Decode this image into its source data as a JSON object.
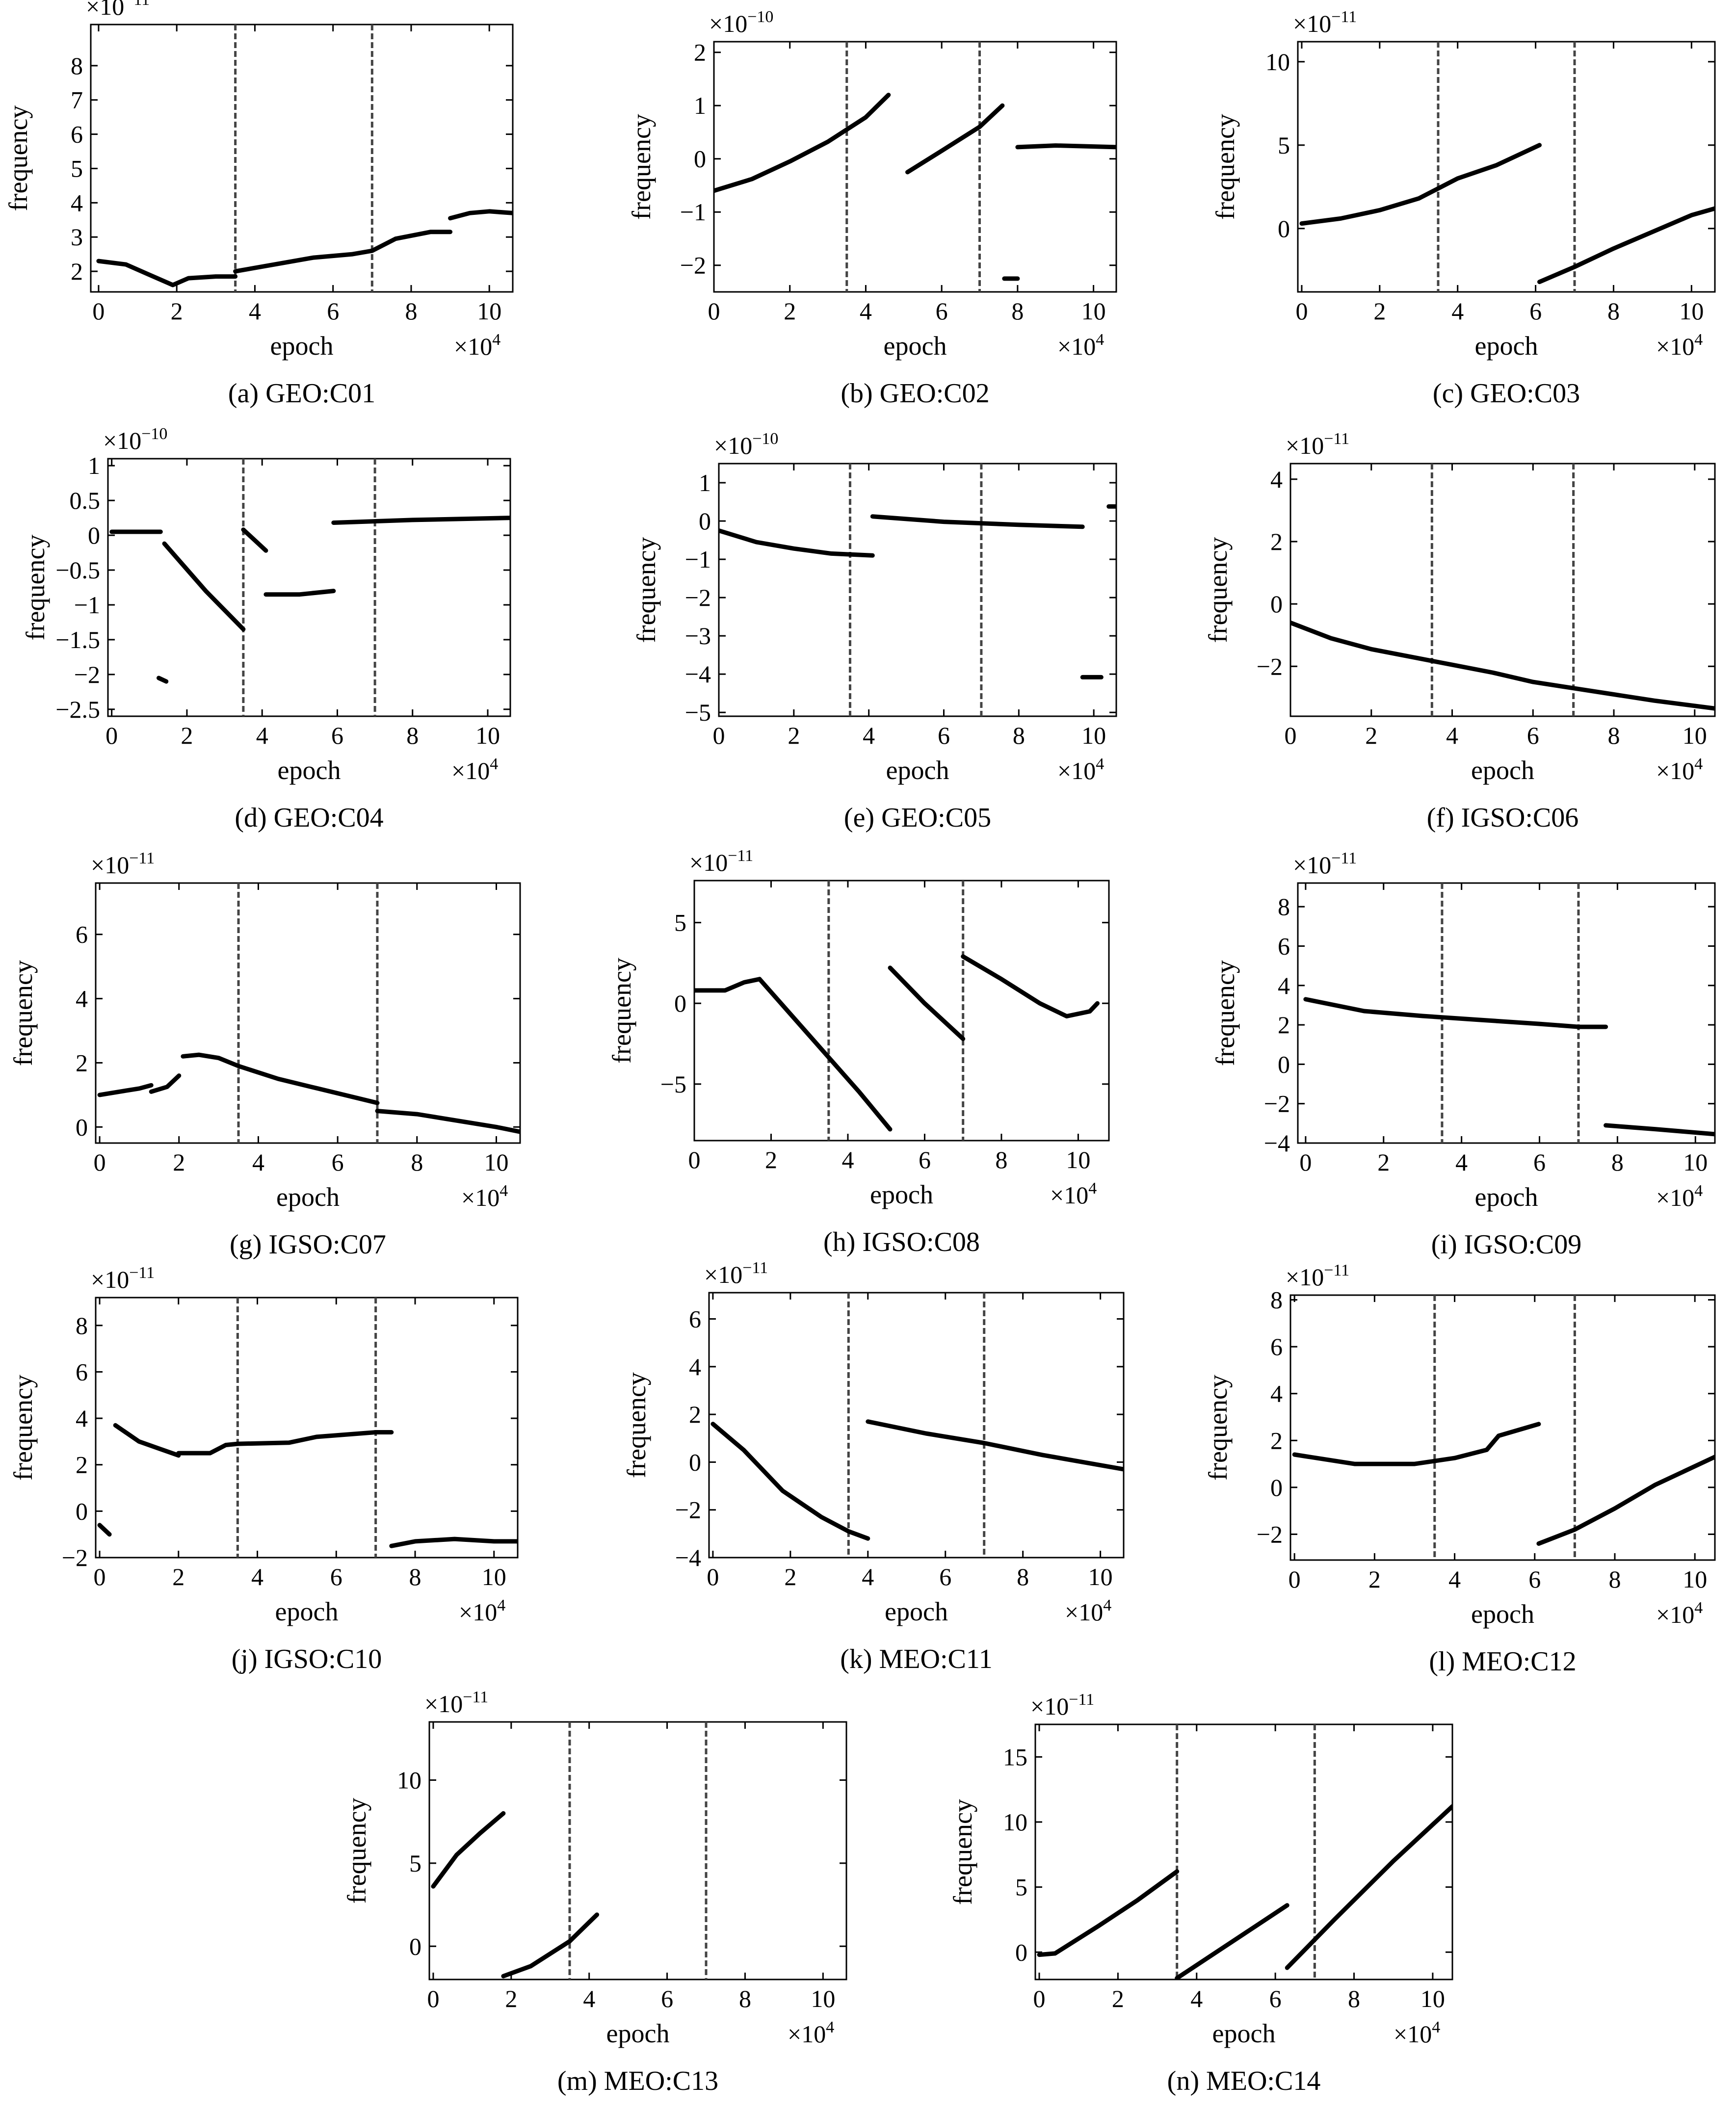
{
  "chart_data": [
    {
      "type": "line",
      "panel": "a",
      "caption": "(a) GEO:C01",
      "xlabel": "epoch",
      "ylabel": "frequency",
      "x_multiplier": "×10",
      "x_multiplier_exp": "4",
      "y_multiplier": "×10",
      "y_multiplier_exp": "−11",
      "xlim": [
        -0.2,
        10.6
      ],
      "ylim": [
        1.4,
        9.2
      ],
      "xticks": [
        0,
        2,
        4,
        6,
        8,
        10
      ],
      "yticks": [
        2,
        3,
        4,
        5,
        6,
        7,
        8
      ],
      "vlines": [
        3.5,
        7.0
      ],
      "series": [
        {
          "x": [
            0,
            0.7,
            1.3,
            1.9,
            2.3,
            3.0,
            3.5
          ],
          "y": [
            2.3,
            2.2,
            1.9,
            1.6,
            1.8,
            1.85,
            1.85
          ]
        },
        {
          "x": [
            3.5,
            4.5,
            5.5,
            6.5,
            7.0,
            7.6,
            8.5,
            9.0
          ],
          "y": [
            2.0,
            2.2,
            2.4,
            2.5,
            2.6,
            2.95,
            3.15,
            3.15
          ]
        },
        {
          "x": [
            9.0,
            9.5,
            10.0,
            10.6
          ],
          "y": [
            3.55,
            3.7,
            3.75,
            3.7
          ]
        }
      ]
    },
    {
      "type": "line",
      "panel": "b",
      "caption": "(b) GEO:C02",
      "xlabel": "epoch",
      "ylabel": "frequency",
      "x_multiplier": "×10",
      "x_multiplier_exp": "4",
      "y_multiplier": "×10",
      "y_multiplier_exp": "−10",
      "xlim": [
        0,
        10.6
      ],
      "ylim": [
        -2.5,
        2.2
      ],
      "xticks": [
        0,
        2,
        4,
        6,
        8,
        10
      ],
      "yticks": [
        -2,
        -1,
        0,
        1,
        2
      ],
      "vlines": [
        3.5,
        7.0
      ],
      "series": [
        {
          "x": [
            0,
            1,
            2,
            3,
            4,
            4.6
          ],
          "y": [
            -0.6,
            -0.38,
            -0.05,
            0.32,
            0.78,
            1.2
          ]
        },
        {
          "x": [
            5.1,
            6,
            7,
            7.6
          ],
          "y": [
            -0.25,
            0.15,
            0.6,
            1.0
          ]
        },
        {
          "x": [
            7.65,
            8.0
          ],
          "y": [
            -2.25,
            -2.25
          ]
        },
        {
          "x": [
            8.0,
            9.0,
            10.6
          ],
          "y": [
            0.22,
            0.25,
            0.22
          ]
        }
      ]
    },
    {
      "type": "line",
      "panel": "c",
      "caption": "(c) GEO:C03",
      "xlabel": "epoch",
      "ylabel": "frequency",
      "x_multiplier": "×10",
      "x_multiplier_exp": "4",
      "y_multiplier": "×10",
      "y_multiplier_exp": "−11",
      "xlim": [
        -0.1,
        10.6
      ],
      "ylim": [
        -3.8,
        11.2
      ],
      "xticks": [
        0,
        2,
        4,
        6,
        8,
        10
      ],
      "yticks": [
        0,
        5,
        10
      ],
      "vlines": [
        3.5,
        7.0
      ],
      "series": [
        {
          "x": [
            0,
            1,
            2,
            3,
            4,
            5,
            6.1
          ],
          "y": [
            0.3,
            0.6,
            1.1,
            1.8,
            3.0,
            3.8,
            5.0
          ]
        },
        {
          "x": [
            6.1,
            7,
            8,
            9,
            10,
            10.6
          ],
          "y": [
            -3.2,
            -2.3,
            -1.2,
            -0.2,
            0.8,
            1.2
          ]
        }
      ]
    },
    {
      "type": "line",
      "panel": "d",
      "caption": "(d) GEO:C04",
      "xlabel": "epoch",
      "ylabel": "frequency",
      "x_multiplier": "×10",
      "x_multiplier_exp": "4",
      "y_multiplier": "×10",
      "y_multiplier_exp": "−10",
      "xlim": [
        -0.1,
        10.6
      ],
      "ylim": [
        -2.6,
        1.1
      ],
      "xticks": [
        0,
        2,
        4,
        6,
        8,
        10
      ],
      "yticks": [
        -2.5,
        -2,
        -1.5,
        -1,
        -0.5,
        0,
        0.5,
        1
      ],
      "vlines": [
        3.5,
        7.0
      ],
      "series": [
        {
          "x": [
            0,
            1.3
          ],
          "y": [
            0.05,
            0.05
          ]
        },
        {
          "x": [
            1.25,
            1.45
          ],
          "y": [
            -2.05,
            -2.1
          ]
        },
        {
          "x": [
            1.4,
            2.5,
            3.5
          ],
          "y": [
            -0.12,
            -0.8,
            -1.35
          ]
        },
        {
          "x": [
            3.5,
            4.1
          ],
          "y": [
            0.08,
            -0.22
          ]
        },
        {
          "x": [
            4.1,
            5.0,
            5.9
          ],
          "y": [
            -0.85,
            -0.85,
            -0.8
          ]
        },
        {
          "x": [
            5.9,
            8.0,
            10.6
          ],
          "y": [
            0.18,
            0.22,
            0.25
          ]
        }
      ]
    },
    {
      "type": "line",
      "panel": "e",
      "caption": "(e) GEO:C05",
      "xlabel": "epoch",
      "ylabel": "frequency",
      "x_multiplier": "×10",
      "x_multiplier_exp": "4",
      "y_multiplier": "×10",
      "y_multiplier_exp": "−10",
      "xlim": [
        0,
        10.6
      ],
      "ylim": [
        -5.1,
        1.5
      ],
      "xticks": [
        0,
        2,
        4,
        6,
        8,
        10
      ],
      "yticks": [
        -5,
        -4,
        -3,
        -2,
        -1,
        0,
        1
      ],
      "vlines": [
        3.5,
        7.0
      ],
      "series": [
        {
          "x": [
            0,
            1,
            2,
            3,
            4.1
          ],
          "y": [
            -0.25,
            -0.55,
            -0.72,
            -0.85,
            -0.9
          ]
        },
        {
          "x": [
            4.1,
            6,
            8,
            9.7
          ],
          "y": [
            0.12,
            -0.02,
            -0.1,
            -0.15
          ]
        },
        {
          "x": [
            9.7,
            10.2
          ],
          "y": [
            -4.08,
            -4.08
          ]
        },
        {
          "x": [
            10.4,
            10.6
          ],
          "y": [
            0.38,
            0.38
          ]
        }
      ]
    },
    {
      "type": "line",
      "panel": "f",
      "caption": "(f) IGSO:C06",
      "xlabel": "epoch",
      "ylabel": "frequency",
      "x_multiplier": "×10",
      "x_multiplier_exp": "4",
      "y_multiplier": "×10",
      "y_multiplier_exp": "−11",
      "xlim": [
        0,
        10.5
      ],
      "ylim": [
        -3.6,
        4.5
      ],
      "xticks": [
        0,
        2,
        4,
        6,
        8,
        10
      ],
      "yticks": [
        -2,
        0,
        2,
        4
      ],
      "vlines": [
        3.5,
        7.0
      ],
      "series": [
        {
          "x": [
            0,
            1,
            2,
            3,
            4,
            5,
            6,
            7,
            8,
            9,
            10.5
          ],
          "y": [
            -0.6,
            -1.1,
            -1.45,
            -1.7,
            -1.95,
            -2.2,
            -2.5,
            -2.7,
            -2.9,
            -3.1,
            -3.35
          ]
        }
      ]
    },
    {
      "type": "line",
      "panel": "g",
      "caption": "(g) IGSO:C07",
      "xlabel": "epoch",
      "ylabel": "frequency",
      "x_multiplier": "×10",
      "x_multiplier_exp": "4",
      "y_multiplier": "×10",
      "y_multiplier_exp": "−11",
      "xlim": [
        -0.1,
        10.6
      ],
      "ylim": [
        -0.5,
        7.6
      ],
      "xticks": [
        0,
        2,
        4,
        6,
        8,
        10
      ],
      "yticks": [
        0,
        2,
        4,
        6
      ],
      "vlines": [
        3.5,
        7.0
      ],
      "series": [
        {
          "x": [
            0,
            0.5,
            1.0,
            1.3
          ],
          "y": [
            1.0,
            1.1,
            1.2,
            1.3
          ]
        },
        {
          "x": [
            1.3,
            1.7,
            2.0
          ],
          "y": [
            1.1,
            1.25,
            1.6
          ]
        },
        {
          "x": [
            2.1,
            2.5,
            3.0,
            3.5
          ],
          "y": [
            2.2,
            2.25,
            2.15,
            1.9
          ]
        },
        {
          "x": [
            3.5,
            4.5,
            5.5,
            6.5,
            7.0
          ],
          "y": [
            1.9,
            1.5,
            1.2,
            0.9,
            0.75
          ]
        },
        {
          "x": [
            7.0,
            8.0,
            9.0,
            10.0,
            10.6
          ],
          "y": [
            0.5,
            0.4,
            0.2,
            0.0,
            -0.15
          ]
        }
      ]
    },
    {
      "type": "line",
      "panel": "h",
      "caption": "(h) IGSO:C08",
      "xlabel": "epoch",
      "ylabel": "frequency",
      "x_multiplier": "×10",
      "x_multiplier_exp": "4",
      "y_multiplier": "×10",
      "y_multiplier_exp": "−11",
      "xlim": [
        0,
        10.8
      ],
      "ylim": [
        -8.5,
        7.6
      ],
      "xticks": [
        0,
        2,
        4,
        6,
        8,
        10
      ],
      "yticks": [
        -5,
        0,
        5
      ],
      "vlines": [
        3.5,
        7.0
      ],
      "series": [
        {
          "x": [
            0,
            0.8,
            1.3,
            1.7
          ],
          "y": [
            0.8,
            0.8,
            1.3,
            1.5
          ]
        },
        {
          "x": [
            1.7,
            3.0,
            4.3,
            5.1
          ],
          "y": [
            1.5,
            -2.0,
            -5.5,
            -7.8
          ]
        },
        {
          "x": [
            5.1,
            6.0,
            7.0
          ],
          "y": [
            2.2,
            0.0,
            -2.2
          ]
        },
        {
          "x": [
            7.0,
            8.0,
            9.0,
            9.7,
            10.3,
            10.5
          ],
          "y": [
            2.9,
            1.5,
            0.0,
            -0.8,
            -0.5,
            0.0
          ]
        }
      ]
    },
    {
      "type": "line",
      "panel": "i",
      "caption": "(i) IGSO:C09",
      "xlabel": "epoch",
      "ylabel": "frequency",
      "x_multiplier": "×10",
      "x_multiplier_exp": "4",
      "y_multiplier": "×10",
      "y_multiplier_exp": "−11",
      "xlim": [
        -0.2,
        10.5
      ],
      "ylim": [
        -4,
        9.2
      ],
      "xticks": [
        0,
        2,
        4,
        6,
        8,
        10
      ],
      "yticks": [
        -4,
        -2,
        0,
        2,
        4,
        6,
        8
      ],
      "vlines": [
        3.5,
        7.0
      ],
      "series": [
        {
          "x": [
            0,
            1.5,
            3.0,
            4.5,
            6.0,
            7.0,
            7.7
          ],
          "y": [
            3.3,
            2.7,
            2.45,
            2.25,
            2.05,
            1.9,
            1.9
          ]
        },
        {
          "x": [
            7.7,
            9.0,
            10.5
          ],
          "y": [
            -3.1,
            -3.3,
            -3.55
          ]
        }
      ]
    },
    {
      "type": "line",
      "panel": "j",
      "caption": "(j) IGSO:C10",
      "xlabel": "epoch",
      "ylabel": "frequency",
      "x_multiplier": "×10",
      "x_multiplier_exp": "4",
      "y_multiplier": "×10",
      "y_multiplier_exp": "−11",
      "xlim": [
        -0.1,
        10.6
      ],
      "ylim": [
        -2,
        9.2
      ],
      "xticks": [
        0,
        2,
        4,
        6,
        8,
        10
      ],
      "yticks": [
        -2,
        0,
        2,
        4,
        6,
        8
      ],
      "vlines": [
        3.5,
        7.0
      ],
      "series": [
        {
          "x": [
            0,
            0.25
          ],
          "y": [
            -0.6,
            -1.0
          ]
        },
        {
          "x": [
            0.4,
            1.0,
            1.5,
            2.0
          ],
          "y": [
            3.7,
            3.0,
            2.7,
            2.4
          ]
        },
        {
          "x": [
            2.0,
            2.8,
            3.2,
            3.5
          ],
          "y": [
            2.5,
            2.5,
            2.85,
            2.9
          ]
        },
        {
          "x": [
            3.5,
            4.8,
            5.5,
            7.0,
            7.4
          ],
          "y": [
            2.9,
            2.95,
            3.2,
            3.4,
            3.4
          ]
        },
        {
          "x": [
            7.4,
            8.0,
            9.0,
            10.0,
            10.6
          ],
          "y": [
            -1.5,
            -1.3,
            -1.2,
            -1.3,
            -1.3
          ]
        }
      ]
    },
    {
      "type": "line",
      "panel": "k",
      "caption": "(k) MEO:C11",
      "xlabel": "epoch",
      "ylabel": "frequency",
      "x_multiplier": "×10",
      "x_multiplier_exp": "4",
      "y_multiplier": "×10",
      "y_multiplier_exp": "−11",
      "xlim": [
        -0.1,
        10.6
      ],
      "ylim": [
        -4,
        7.1
      ],
      "xticks": [
        0,
        2,
        4,
        6,
        8,
        10
      ],
      "yticks": [
        -4,
        -2,
        0,
        2,
        4,
        6
      ],
      "vlines": [
        3.5,
        7.0
      ],
      "series": [
        {
          "x": [
            0,
            0.8,
            1.8,
            2.8,
            3.5,
            4.0
          ],
          "y": [
            1.6,
            0.5,
            -1.2,
            -2.3,
            -2.9,
            -3.2
          ]
        },
        {
          "x": [
            4.0,
            5.5,
            7.0,
            8.5,
            10.6
          ],
          "y": [
            1.7,
            1.2,
            0.8,
            0.3,
            -0.3
          ]
        }
      ]
    },
    {
      "type": "line",
      "panel": "l",
      "caption": "(l) MEO:C12",
      "xlabel": "epoch",
      "ylabel": "frequency",
      "x_multiplier": "×10",
      "x_multiplier_exp": "4",
      "y_multiplier": "×10",
      "y_multiplier_exp": "−11",
      "xlim": [
        -0.1,
        10.5
      ],
      "ylim": [
        -3.1,
        8.2
      ],
      "xticks": [
        0,
        2,
        4,
        6,
        8,
        10
      ],
      "yticks": [
        -2,
        0,
        2,
        4,
        6,
        8
      ],
      "vlines": [
        3.5,
        7.0
      ],
      "series": [
        {
          "x": [
            0,
            1.5,
            3.0,
            4.0,
            4.8,
            5.1,
            6.1
          ],
          "y": [
            1.4,
            1.0,
            1.0,
            1.25,
            1.6,
            2.2,
            2.7
          ]
        },
        {
          "x": [
            6.1,
            7.0,
            8.0,
            9.0,
            10.5
          ],
          "y": [
            -2.4,
            -1.8,
            -0.9,
            0.1,
            1.3
          ]
        }
      ]
    },
    {
      "type": "line",
      "panel": "m",
      "caption": "(m) MEO:C13",
      "xlabel": "epoch",
      "ylabel": "frequency",
      "x_multiplier": "×10",
      "x_multiplier_exp": "4",
      "y_multiplier": "×10",
      "y_multiplier_exp": "−11",
      "xlim": [
        -0.1,
        10.6
      ],
      "ylim": [
        -2,
        13.5
      ],
      "xticks": [
        0,
        2,
        4,
        6,
        8,
        10
      ],
      "yticks": [
        0,
        5,
        10
      ],
      "vlines": [
        3.5,
        7.0
      ],
      "series": [
        {
          "x": [
            0,
            0.6,
            1.2,
            1.8
          ],
          "y": [
            3.6,
            5.5,
            6.8,
            8.0
          ]
        },
        {
          "x": [
            1.8,
            2.5,
            3.5,
            4.2
          ],
          "y": [
            -1.8,
            -1.2,
            0.3,
            1.9
          ]
        }
      ]
    },
    {
      "type": "line",
      "panel": "n",
      "caption": "(n) MEO:C14",
      "xlabel": "epoch",
      "ylabel": "frequency",
      "x_multiplier": "×10",
      "x_multiplier_exp": "4",
      "y_multiplier": "×10",
      "y_multiplier_exp": "−11",
      "xlim": [
        -0.1,
        10.5
      ],
      "ylim": [
        -2.1,
        17.5
      ],
      "xticks": [
        0,
        2,
        4,
        6,
        8,
        10
      ],
      "yticks": [
        0,
        5,
        10,
        15
      ],
      "vlines": [
        3.5,
        7.0
      ],
      "series": [
        {
          "x": [
            0,
            0.4,
            1.5,
            2.5,
            3.5
          ],
          "y": [
            -0.2,
            -0.1,
            2.0,
            4.0,
            6.2
          ]
        },
        {
          "x": [
            3.5,
            4.5,
            5.5,
            6.3
          ],
          "y": [
            -2.0,
            0.0,
            2.0,
            3.6
          ]
        },
        {
          "x": [
            6.3,
            7.5,
            9.0,
            10.5
          ],
          "y": [
            -1.2,
            2.5,
            7.0,
            11.2
          ]
        }
      ]
    }
  ]
}
